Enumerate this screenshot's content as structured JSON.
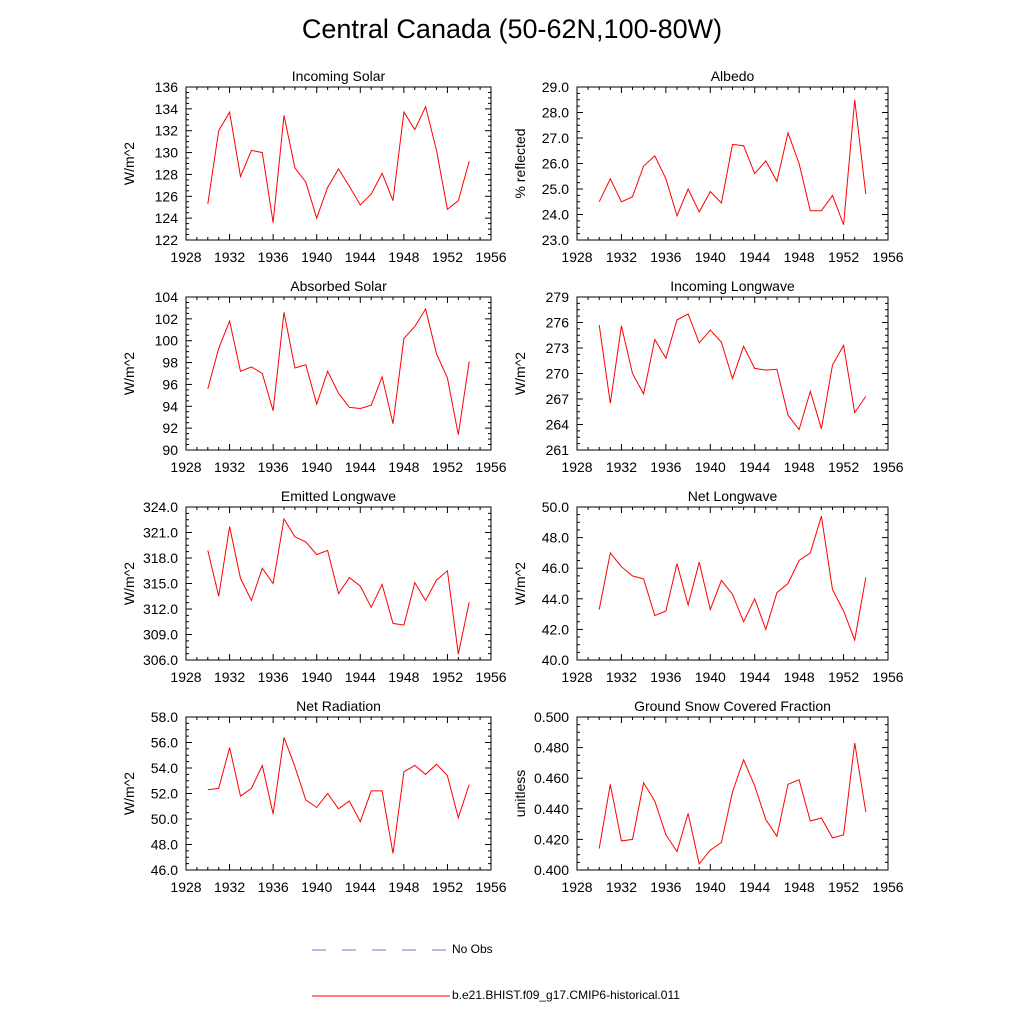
{
  "title": "Central Canada (50-62N,100-80W)",
  "colors": {
    "series": "#ff0000",
    "no_obs": "#6a7fd1",
    "axis": "#000000"
  },
  "legend": {
    "items": [
      {
        "label": "No Obs",
        "style": "dashed",
        "color": "#6a7fd1"
      },
      {
        "label": "b.e21.BHIST.f09_g17.CMIP6-historical.011",
        "style": "solid",
        "color": "#ff0000"
      }
    ]
  },
  "chart_data": [
    {
      "type": "line",
      "title": "Incoming Solar",
      "xlabel": "",
      "ylabel": "W/m^2",
      "xlim": [
        1928,
        1956
      ],
      "xticks": [
        "1928",
        "1932",
        "1936",
        "1940",
        "1944",
        "1948",
        "1952",
        "1956"
      ],
      "ylim": [
        122,
        136
      ],
      "yticks": [
        "122",
        "124",
        "126",
        "128",
        "130",
        "132",
        "134",
        "136"
      ],
      "x": [
        1930,
        1931,
        1932,
        1933,
        1934,
        1935,
        1936,
        1937,
        1938,
        1939,
        1940,
        1941,
        1942,
        1943,
        1944,
        1945,
        1946,
        1947,
        1948,
        1949,
        1950,
        1951,
        1952,
        1953,
        1954
      ],
      "series": [
        {
          "name": "b.e21.BHIST.f09_g17.CMIP6-historical.011",
          "values": [
            125.3,
            132.0,
            133.7,
            127.8,
            130.2,
            130.0,
            123.6,
            133.4,
            128.6,
            127.3,
            124.0,
            126.8,
            128.5,
            126.9,
            125.2,
            126.2,
            128.1,
            125.6,
            133.7,
            132.1,
            134.2,
            130.2,
            124.8,
            125.6,
            129.2
          ]
        }
      ]
    },
    {
      "type": "line",
      "title": "Albedo",
      "xlabel": "",
      "ylabel": "% reflected",
      "xlim": [
        1928,
        1956
      ],
      "xticks": [
        "1928",
        "1932",
        "1936",
        "1940",
        "1944",
        "1948",
        "1952",
        "1956"
      ],
      "ylim": [
        23,
        29
      ],
      "yticks": [
        "23.0",
        "24.0",
        "25.0",
        "26.0",
        "27.0",
        "28.0",
        "29.0"
      ],
      "x": [
        1930,
        1931,
        1932,
        1933,
        1934,
        1935,
        1936,
        1937,
        1938,
        1939,
        1940,
        1941,
        1942,
        1943,
        1944,
        1945,
        1946,
        1947,
        1948,
        1949,
        1950,
        1951,
        1952,
        1953,
        1954
      ],
      "series": [
        {
          "name": "b.e21.BHIST.f09_g17.CMIP6-historical.011",
          "values": [
            24.5,
            25.4,
            24.5,
            24.7,
            25.9,
            26.3,
            25.4,
            23.95,
            25.0,
            24.1,
            24.9,
            24.45,
            26.75,
            26.7,
            25.6,
            26.1,
            25.3,
            27.2,
            26.0,
            24.15,
            24.15,
            24.75,
            23.6,
            28.5,
            24.8
          ]
        }
      ]
    },
    {
      "type": "line",
      "title": "Absorbed Solar",
      "xlabel": "",
      "ylabel": "W/m^2",
      "xlim": [
        1928,
        1956
      ],
      "xticks": [
        "1928",
        "1932",
        "1936",
        "1940",
        "1944",
        "1948",
        "1952",
        "1956"
      ],
      "ylim": [
        90,
        104
      ],
      "yticks": [
        "90",
        "92",
        "94",
        "96",
        "98",
        "100",
        "102",
        "104"
      ],
      "x": [
        1930,
        1931,
        1932,
        1933,
        1934,
        1935,
        1936,
        1937,
        1938,
        1939,
        1940,
        1941,
        1942,
        1943,
        1944,
        1945,
        1946,
        1947,
        1948,
        1949,
        1950,
        1951,
        1952,
        1953,
        1954
      ],
      "series": [
        {
          "name": "b.e21.BHIST.f09_g17.CMIP6-historical.011",
          "values": [
            95.6,
            99.3,
            101.8,
            97.2,
            97.6,
            97.0,
            93.6,
            102.6,
            97.5,
            97.8,
            94.2,
            97.2,
            95.2,
            93.9,
            93.8,
            94.1,
            96.7,
            92.4,
            100.2,
            101.3,
            102.9,
            98.8,
            96.6,
            91.4,
            98.1
          ]
        }
      ]
    },
    {
      "type": "line",
      "title": "Incoming Longwave",
      "xlabel": "",
      "ylabel": "W/m^2",
      "xlim": [
        1928,
        1956
      ],
      "xticks": [
        "1928",
        "1932",
        "1936",
        "1940",
        "1944",
        "1948",
        "1952",
        "1956"
      ],
      "ylim": [
        261,
        279
      ],
      "yticks": [
        "261",
        "264",
        "267",
        "270",
        "273",
        "276",
        "279"
      ],
      "x": [
        1930,
        1931,
        1932,
        1933,
        1934,
        1935,
        1936,
        1937,
        1938,
        1939,
        1940,
        1941,
        1942,
        1943,
        1944,
        1945,
        1946,
        1947,
        1948,
        1949,
        1950,
        1951,
        1952,
        1953,
        1954
      ],
      "series": [
        {
          "name": "b.e21.BHIST.f09_g17.CMIP6-historical.011",
          "values": [
            275.7,
            266.5,
            275.6,
            270.0,
            267.6,
            274.0,
            271.8,
            276.3,
            277.0,
            273.6,
            275.1,
            273.7,
            269.4,
            273.2,
            270.6,
            270.4,
            270.5,
            265.1,
            263.4,
            267.9,
            263.5,
            271.0,
            273.3,
            265.4,
            267.3
          ]
        }
      ]
    },
    {
      "type": "line",
      "title": "Emitted Longwave",
      "xlabel": "",
      "ylabel": "W/m^2",
      "xlim": [
        1928,
        1956
      ],
      "xticks": [
        "1928",
        "1932",
        "1936",
        "1940",
        "1944",
        "1948",
        "1952",
        "1956"
      ],
      "ylim": [
        306,
        324
      ],
      "yticks": [
        "306.0",
        "309.0",
        "312.0",
        "315.0",
        "318.0",
        "321.0",
        "324.0"
      ],
      "x": [
        1930,
        1931,
        1932,
        1933,
        1934,
        1935,
        1936,
        1937,
        1938,
        1939,
        1940,
        1941,
        1942,
        1943,
        1944,
        1945,
        1946,
        1947,
        1948,
        1949,
        1950,
        1951,
        1952,
        1953,
        1954
      ],
      "series": [
        {
          "name": "b.e21.BHIST.f09_g17.CMIP6-historical.011",
          "values": [
            318.9,
            313.5,
            321.7,
            315.6,
            313.0,
            316.8,
            315.0,
            322.6,
            320.5,
            319.9,
            318.4,
            318.9,
            313.8,
            315.7,
            314.7,
            312.2,
            314.9,
            310.3,
            310.1,
            315.1,
            313.0,
            315.4,
            316.5,
            306.7,
            312.8
          ]
        }
      ]
    },
    {
      "type": "line",
      "title": "Net Longwave",
      "xlabel": "",
      "ylabel": "W/m^2",
      "xlim": [
        1928,
        1956
      ],
      "xticks": [
        "1928",
        "1932",
        "1936",
        "1940",
        "1944",
        "1948",
        "1952",
        "1956"
      ],
      "ylim": [
        40,
        50
      ],
      "yticks": [
        "40.0",
        "42.0",
        "44.0",
        "46.0",
        "48.0",
        "50.0"
      ],
      "x": [
        1930,
        1931,
        1932,
        1933,
        1934,
        1935,
        1936,
        1937,
        1938,
        1939,
        1940,
        1941,
        1942,
        1943,
        1944,
        1945,
        1946,
        1947,
        1948,
        1949,
        1950,
        1951,
        1952,
        1953,
        1954
      ],
      "series": [
        {
          "name": "b.e21.BHIST.f09_g17.CMIP6-historical.011",
          "values": [
            43.3,
            47.0,
            46.1,
            45.5,
            45.3,
            42.9,
            43.2,
            46.3,
            43.6,
            46.4,
            43.3,
            45.2,
            44.3,
            42.5,
            44.0,
            42.0,
            44.4,
            45.0,
            46.5,
            47.0,
            49.4,
            44.6,
            43.2,
            41.3,
            45.4
          ]
        }
      ]
    },
    {
      "type": "line",
      "title": "Net Radiation",
      "xlabel": "",
      "ylabel": "W/m^2",
      "xlim": [
        1928,
        1956
      ],
      "xticks": [
        "1928",
        "1932",
        "1936",
        "1940",
        "1944",
        "1948",
        "1952",
        "1956"
      ],
      "ylim": [
        46,
        58
      ],
      "yticks": [
        "46.0",
        "48.0",
        "50.0",
        "52.0",
        "54.0",
        "56.0",
        "58.0"
      ],
      "x": [
        1930,
        1931,
        1932,
        1933,
        1934,
        1935,
        1936,
        1937,
        1938,
        1939,
        1940,
        1941,
        1942,
        1943,
        1944,
        1945,
        1946,
        1947,
        1948,
        1949,
        1950,
        1951,
        1952,
        1953,
        1954
      ],
      "series": [
        {
          "name": "b.e21.BHIST.f09_g17.CMIP6-historical.011",
          "values": [
            52.3,
            52.4,
            55.6,
            51.8,
            52.4,
            54.2,
            50.4,
            56.4,
            54.1,
            51.5,
            50.9,
            52.0,
            50.8,
            51.4,
            49.8,
            52.2,
            52.2,
            47.3,
            53.7,
            54.2,
            53.5,
            54.3,
            53.4,
            50.1,
            52.7
          ]
        }
      ]
    },
    {
      "type": "line",
      "title": "Ground Snow Covered Fraction",
      "xlabel": "",
      "ylabel": "unitless",
      "xlim": [
        1928,
        1956
      ],
      "xticks": [
        "1928",
        "1932",
        "1936",
        "1940",
        "1944",
        "1948",
        "1952",
        "1956"
      ],
      "ylim": [
        0.4,
        0.5
      ],
      "yticks": [
        "0.400",
        "0.420",
        "0.440",
        "0.460",
        "0.480",
        "0.500"
      ],
      "x": [
        1930,
        1931,
        1932,
        1933,
        1934,
        1935,
        1936,
        1937,
        1938,
        1939,
        1940,
        1941,
        1942,
        1943,
        1944,
        1945,
        1946,
        1947,
        1948,
        1949,
        1950,
        1951,
        1952,
        1953,
        1954
      ],
      "series": [
        {
          "name": "b.e21.BHIST.f09_g17.CMIP6-historical.011",
          "values": [
            0.414,
            0.456,
            0.419,
            0.42,
            0.457,
            0.445,
            0.423,
            0.412,
            0.437,
            0.404,
            0.413,
            0.418,
            0.451,
            0.472,
            0.455,
            0.433,
            0.422,
            0.456,
            0.459,
            0.432,
            0.434,
            0.421,
            0.423,
            0.483,
            0.438
          ]
        }
      ]
    }
  ]
}
